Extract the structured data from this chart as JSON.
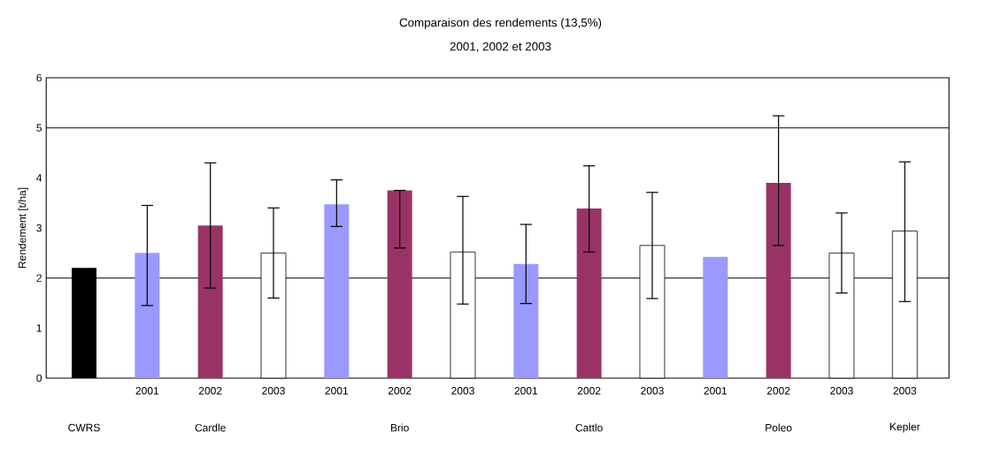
{
  "chart_data": {
    "type": "bar",
    "title": "Comparaison des rendements (13,5%)",
    "subtitle": "2001, 2002 et 2003",
    "ylabel": "Rendement [t/ha]",
    "categories": [
      null,
      "2001",
      "2002",
      "2003",
      "2001",
      "2002",
      "2003",
      "2001",
      "2002",
      "2003",
      "2001",
      "2002",
      "2003",
      "2003"
    ],
    "values": [
      2.2,
      2.5,
      3.05,
      2.5,
      3.47,
      3.75,
      2.52,
      2.28,
      3.39,
      2.65,
      2.42,
      3.9,
      2.5,
      2.94
    ],
    "colors": [
      "#000000",
      "#9999ff",
      "#993366",
      "#ffffff",
      "#9999ff",
      "#993366",
      "#ffffff",
      "#9999ff",
      "#993366",
      "#ffffff",
      "#9999ff",
      "#993366",
      "#ffffff",
      "#ffffff"
    ],
    "errors": [
      null,
      [
        1.45,
        3.45
      ],
      [
        1.8,
        4.3
      ],
      [
        1.6,
        3.4
      ],
      [
        3.03,
        3.96
      ],
      [
        2.6,
        3.75
      ],
      [
        1.48,
        3.63
      ],
      [
        1.49,
        3.07
      ],
      [
        2.52,
        4.24
      ],
      [
        1.59,
        3.71
      ],
      null,
      [
        2.65,
        5.24
      ],
      [
        1.7,
        3.3
      ],
      [
        1.53,
        4.32
      ]
    ],
    "ylim": [
      0,
      6
    ],
    "yticks": [
      0,
      1,
      2,
      3,
      4,
      5,
      6
    ],
    "ref_lines": [
      {
        "axis": "y",
        "value": 2,
        "color": "#000000"
      },
      {
        "axis": "y",
        "value": 5,
        "color": "#000000"
      }
    ],
    "annotations": [
      "CWRS",
      "Cardle",
      "Brio",
      "Cattlo",
      "Poleo",
      "Kepler"
    ]
  }
}
